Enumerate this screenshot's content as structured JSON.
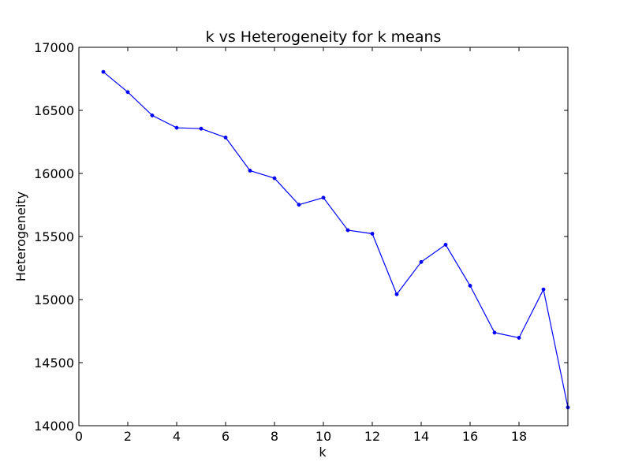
{
  "chart_data": {
    "type": "line",
    "title": "k vs Heterogeneity for k means",
    "xlabel": "k",
    "ylabel": "Heterogeneity",
    "xlim": [
      0,
      20
    ],
    "ylim": [
      14000,
      17000
    ],
    "xticks": [
      0,
      2,
      4,
      6,
      8,
      10,
      12,
      14,
      16,
      18
    ],
    "yticks": [
      14000,
      14500,
      15000,
      15500,
      16000,
      16500,
      17000
    ],
    "grid": false,
    "series": [
      {
        "color": "#0000ff",
        "marker": "dot",
        "x": [
          1,
          2,
          3,
          4,
          5,
          6,
          7,
          8,
          9,
          10,
          11,
          12,
          13,
          14,
          15,
          16,
          17,
          18,
          19,
          20
        ],
        "y": [
          16805,
          16645,
          16460,
          16362,
          16355,
          16285,
          16022,
          15962,
          15752,
          15808,
          15550,
          15522,
          15042,
          15298,
          15435,
          15110,
          14738,
          14697,
          15080,
          14145
        ]
      }
    ]
  }
}
